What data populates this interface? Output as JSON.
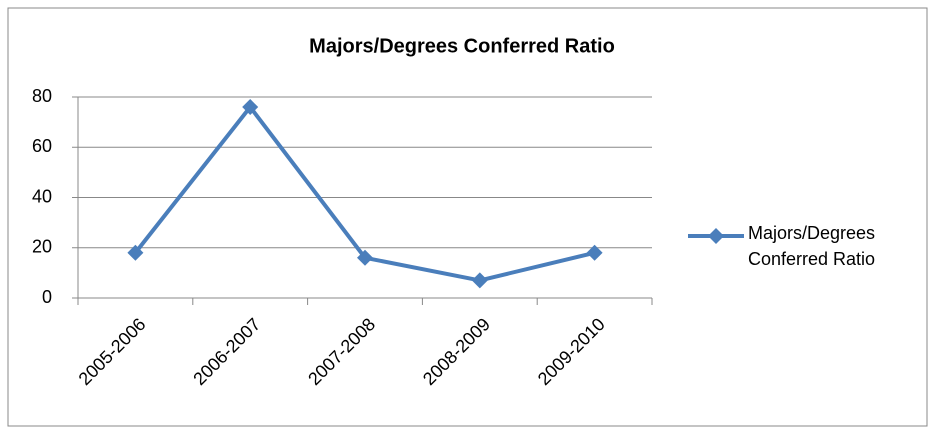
{
  "chart_data": {
    "type": "line",
    "title": "Majors/Degrees Conferred Ratio",
    "categories": [
      "2005-2006",
      "2006-2007",
      "2007-2008",
      "2008-2009",
      "2009-2010"
    ],
    "series": [
      {
        "name": "Majors/Degrees Conferred Ratio",
        "color": "#4a7ebb",
        "values": [
          18,
          76,
          16,
          7,
          18
        ]
      }
    ],
    "ylim": [
      0,
      80
    ],
    "yticks": [
      0,
      20,
      40,
      60,
      80
    ],
    "grid": true,
    "legend": "right"
  }
}
